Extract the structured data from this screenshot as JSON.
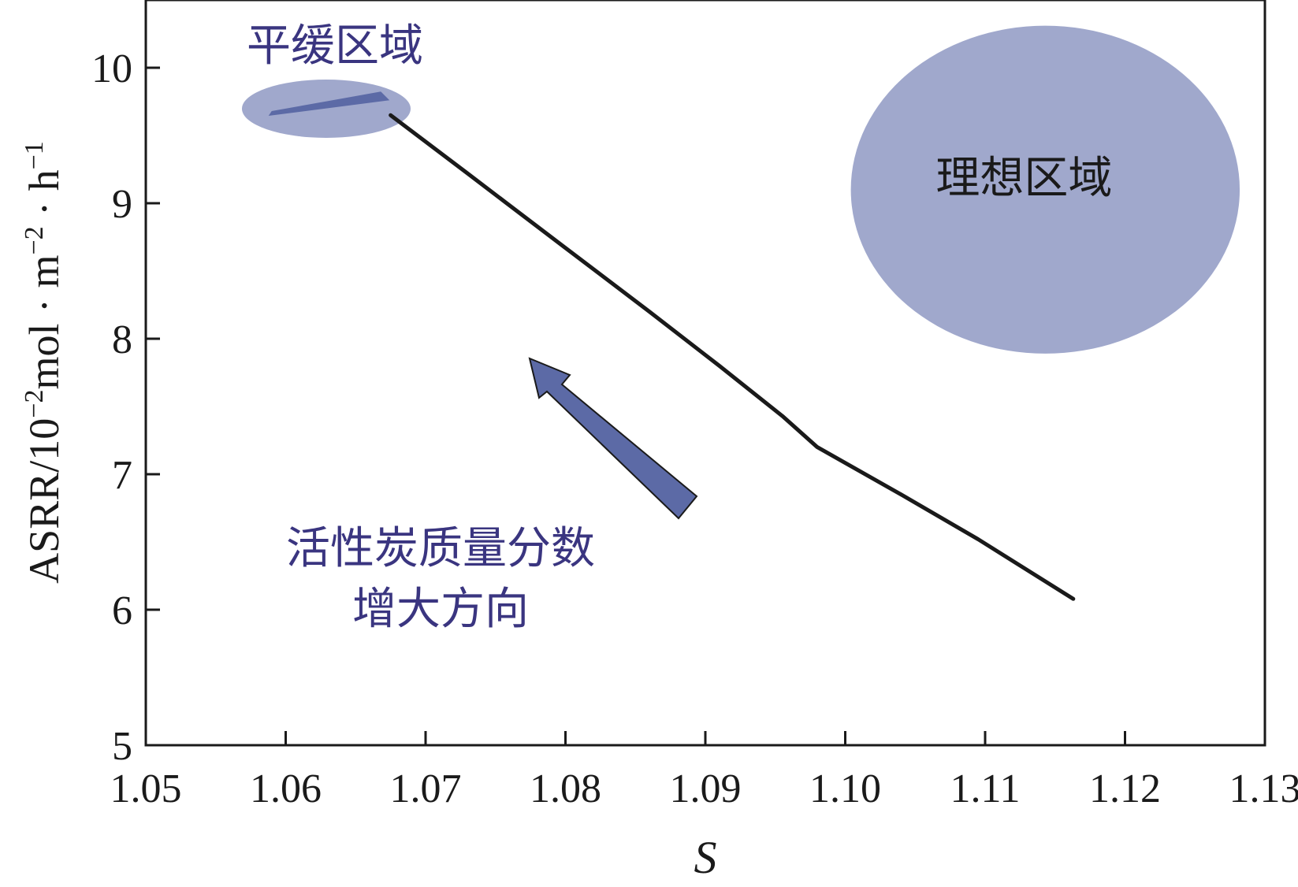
{
  "chart_data": {
    "type": "line",
    "title": "",
    "xlabel": "S",
    "ylabel": {
      "base": "ASRR/10",
      "exp1": "−2",
      "mid": "mol · m",
      "exp2": "−2",
      "mid2": " · h",
      "exp3": "−1"
    },
    "xlim": [
      1.05,
      1.13
    ],
    "ylim": [
      5,
      10.5
    ],
    "x_ticks": [
      "1.05",
      "1.06",
      "1.07",
      "1.08",
      "1.09",
      "1.10",
      "1.11",
      "1.12",
      "1.13"
    ],
    "y_ticks": [
      "5",
      "6",
      "7",
      "8",
      "9",
      "10"
    ],
    "grid": false,
    "series": [
      {
        "name": "",
        "x": [
          1.0675,
          1.073,
          1.08,
          1.086,
          1.091,
          1.0955,
          1.098,
          1.104,
          1.1095,
          1.1163
        ],
        "y": [
          9.65,
          9.22,
          8.67,
          8.2,
          7.8,
          7.43,
          7.2,
          6.85,
          6.52,
          6.08
        ]
      }
    ],
    "annotations": {
      "flat_region": {
        "label": "平缓区域",
        "segment_x": [
          1.059,
          1.0668
        ],
        "segment_y": [
          9.68,
          9.76
        ]
      },
      "ideal_region": {
        "label": "理想区域",
        "center": [
          1.1143,
          9.1
        ],
        "radius_x": 0.0139,
        "radius_y": 1.21
      },
      "direction": {
        "line1": "活性炭质量分数",
        "line2": "增大方向"
      }
    },
    "colors": {
      "line": "#1a1a1a",
      "region_fill": "#a0a8cc",
      "arrow_fill": "#5c6aa6",
      "arrow_text": "#3a3580",
      "text": "#1a1a1a"
    }
  }
}
